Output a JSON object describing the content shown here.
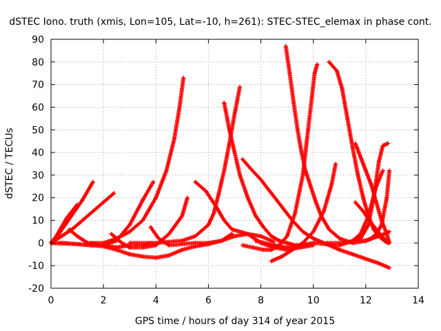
{
  "chart_data": {
    "type": "scatter",
    "title": "dSTEC Iono. truth (xmis, Lon=105, Lat=-10, h=261): STEC-STEC_elemax in phase cont.",
    "xlabel": "GPS time / hours of day 314 of year 2015",
    "ylabel": "dSTEC  / TECUs",
    "xlim": [
      0,
      14
    ],
    "ylim": [
      -20,
      90
    ],
    "xticks": [
      0,
      2,
      4,
      6,
      8,
      10,
      12,
      14
    ],
    "yticks": [
      -20,
      -10,
      0,
      10,
      20,
      30,
      40,
      50,
      60,
      70,
      80,
      90
    ],
    "grid": true,
    "marker": "+",
    "color": "#ff0000",
    "series": [
      {
        "x": [
          0.0,
          0.2,
          0.4,
          0.6,
          0.8,
          1.0
        ],
        "y": [
          0,
          3,
          7,
          11,
          14,
          17
        ]
      },
      {
        "x": [
          0.0,
          0.3,
          0.6,
          0.9,
          1.2,
          1.4,
          1.6
        ],
        "y": [
          0,
          4,
          9,
          14,
          19,
          23,
          27
        ]
      },
      {
        "x": [
          0.0,
          0.4,
          0.8,
          1.2,
          1.6,
          2.0,
          2.4
        ],
        "y": [
          0,
          3,
          6,
          10,
          14,
          18,
          22
        ]
      },
      {
        "x": [
          0.7,
          1.0,
          1.4,
          2.0,
          2.5,
          3.0,
          3.5,
          3.8
        ],
        "y": [
          6,
          3,
          0,
          -1,
          -2,
          -1,
          -1,
          0
        ]
      },
      {
        "x": [
          0.0,
          0.5,
          1.0,
          1.5,
          2.0,
          2.5,
          3.0,
          3.5,
          3.9
        ],
        "y": [
          0,
          0,
          -0.5,
          -1,
          -1,
          1,
          8,
          19,
          27
        ]
      },
      {
        "x": [
          1.5,
          2.0,
          2.5,
          3.0,
          3.5,
          4.0,
          4.4,
          4.7,
          4.9,
          5.05
        ],
        "y": [
          0,
          0,
          2,
          5,
          10,
          20,
          32,
          46,
          60,
          73
        ]
      },
      {
        "x": [
          2.3,
          2.7,
          3.0,
          3.5,
          4.0,
          4.5,
          5.0,
          5.2
        ],
        "y": [
          4,
          0,
          -2,
          -2,
          -1,
          4,
          12,
          20
        ]
      },
      {
        "x": [
          0.0,
          1.0,
          2.0,
          2.5,
          3.0,
          3.5,
          4.0,
          4.5,
          5.0,
          5.5,
          6.0,
          6.5,
          6.9
        ],
        "y": [
          0,
          -0.5,
          -1.5,
          -3,
          -5,
          -6,
          -6.5,
          -5.5,
          -3,
          -1.5,
          -0.5,
          1,
          4
        ]
      },
      {
        "x": [
          3.8,
          4.1,
          4.5,
          5.0,
          5.5,
          6.0,
          6.5,
          7.0,
          7.5,
          8.0,
          8.5
        ],
        "y": [
          7,
          2,
          -1,
          -0.5,
          0,
          0,
          1,
          3,
          4,
          3,
          0.5
        ]
      },
      {
        "x": [
          5.5,
          5.9,
          6.3,
          6.6,
          6.9,
          7.2,
          7.5,
          8.0,
          8.5,
          9.0,
          9.5,
          10.0
        ],
        "y": [
          27,
          23,
          16,
          10,
          6,
          5,
          4,
          0,
          -2,
          -3,
          -2,
          -1
        ]
      },
      {
        "x": [
          3.0,
          4.0,
          4.5,
          5.0,
          5.5,
          6.0,
          6.2,
          6.4,
          6.6,
          6.8,
          7.0,
          7.2
        ],
        "y": [
          0,
          0,
          0.5,
          1,
          3,
          8,
          13,
          22,
          32,
          44,
          57,
          69
        ]
      },
      {
        "x": [
          6.6,
          6.8,
          7.0,
          7.2,
          7.5,
          7.8,
          8.1,
          8.4,
          8.7,
          9.0,
          9.3,
          9.7
        ],
        "y": [
          62,
          50,
          40,
          30,
          20,
          12,
          7,
          3,
          1,
          0,
          -1,
          -1
        ]
      },
      {
        "x": [
          7.3,
          7.6,
          8.0,
          8.4,
          8.8,
          9.2,
          9.6,
          10.0,
          10.4,
          11.0,
          11.5,
          12.0,
          12.5,
          12.9
        ],
        "y": [
          37,
          33,
          28,
          22,
          16,
          10,
          5,
          2,
          0,
          -3,
          -5,
          -7,
          -9,
          -11
        ]
      },
      {
        "x": [
          8.95,
          9.1,
          9.25,
          9.4,
          9.55,
          9.7,
          9.9,
          10.1,
          10.3,
          10.6,
          11.0,
          11.5,
          12.0,
          12.5,
          12.9
        ],
        "y": [
          87,
          75,
          62,
          50,
          40,
          32,
          25,
          18,
          12,
          6,
          2,
          0,
          1,
          3,
          5
        ]
      },
      {
        "x": [
          7.3,
          7.7,
          8.1,
          8.4,
          8.7,
          9.0,
          9.3,
          9.6,
          9.8,
          9.95,
          10.05,
          10.15
        ],
        "y": [
          -1,
          -2,
          -3,
          -3,
          -1,
          3,
          13,
          30,
          50,
          65,
          75,
          79
        ]
      },
      {
        "x": [
          8.4,
          8.8,
          9.2,
          9.6,
          10.0,
          10.4,
          10.7,
          10.85
        ],
        "y": [
          -8,
          -6,
          -3,
          0,
          5,
          14,
          26,
          35
        ]
      },
      {
        "x": [
          7.8,
          8.5,
          9.0,
          9.5,
          10.0,
          10.5,
          11.0,
          11.5,
          11.8,
          12.1,
          12.4,
          12.65
        ],
        "y": [
          1,
          -1,
          -2,
          -1,
          0,
          -0.5,
          -1,
          1,
          4,
          12,
          25,
          32
        ]
      },
      {
        "x": [
          10.6,
          10.9,
          11.1,
          11.3,
          11.5,
          11.7,
          11.9,
          12.1,
          12.3,
          12.5,
          12.7,
          12.85
        ],
        "y": [
          80,
          76,
          68,
          55,
          42,
          30,
          20,
          12,
          6,
          3,
          1,
          0
        ]
      },
      {
        "x": [
          11.6,
          11.8,
          12.0,
          12.2,
          12.4,
          12.6,
          12.8,
          12.9
        ],
        "y": [
          44,
          38,
          32,
          26,
          18,
          10,
          4,
          0
        ]
      },
      {
        "x": [
          11.6,
          11.9,
          12.2,
          12.4,
          12.6,
          12.8,
          12.9
        ],
        "y": [
          18,
          14,
          9,
          6,
          3,
          1,
          0
        ]
      },
      {
        "x": [
          10.5,
          11.0,
          11.5,
          11.8,
          12.1,
          12.3,
          12.5,
          12.65,
          12.85
        ],
        "y": [
          0,
          0,
          0.5,
          2,
          8,
          20,
          36,
          43,
          44
        ]
      },
      {
        "x": [
          11.8,
          12.0,
          12.2,
          12.4,
          12.6,
          12.8,
          12.9
        ],
        "y": [
          1,
          1,
          2,
          4,
          8,
          20,
          32
        ]
      }
    ]
  }
}
